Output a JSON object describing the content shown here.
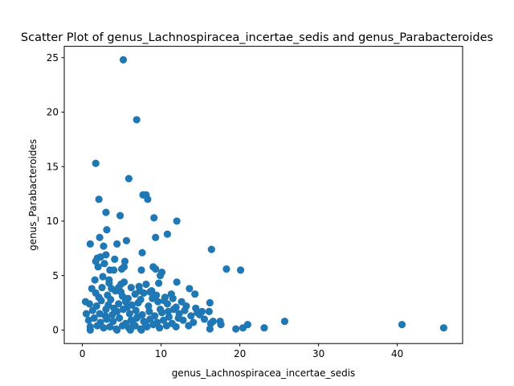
{
  "chart_data": {
    "type": "scatter",
    "title": "Scatter Plot of genus_Lachnospiracea_incertae_sedis and genus_Parabacteroides",
    "xlabel": "genus_Lachnospiracea_incertae_sedis",
    "ylabel": "genus_Parabacteroides",
    "xlim": [
      -2.3,
      48.3
    ],
    "ylim": [
      -1.24,
      26.04
    ],
    "x_ticks": [
      0,
      10,
      20,
      30,
      40
    ],
    "y_ticks": [
      0,
      5,
      10,
      15,
      20,
      25
    ],
    "marker_color": "#1f77b4",
    "grid": false,
    "series": [
      {
        "points": [
          [
            5.2,
            24.8
          ],
          [
            6.9,
            19.3
          ],
          [
            1.7,
            15.3
          ],
          [
            5.9,
            13.9
          ],
          [
            7.7,
            12.4
          ],
          [
            8.1,
            12.4
          ],
          [
            2.1,
            12.0
          ],
          [
            8.3,
            12.0
          ],
          [
            3.0,
            10.8
          ],
          [
            4.8,
            10.5
          ],
          [
            9.1,
            10.3
          ],
          [
            12.0,
            10.0
          ],
          [
            3.1,
            9.2
          ],
          [
            10.8,
            8.8
          ],
          [
            2.2,
            8.5
          ],
          [
            9.3,
            8.5
          ],
          [
            5.6,
            8.2
          ],
          [
            1.0,
            7.9
          ],
          [
            4.4,
            7.9
          ],
          [
            2.7,
            7.7
          ],
          [
            16.4,
            7.4
          ],
          [
            7.6,
            7.1
          ],
          [
            3.0,
            6.9
          ],
          [
            1.9,
            6.6
          ],
          [
            2.3,
            6.7
          ],
          [
            1.7,
            6.3
          ],
          [
            2.8,
            6.1
          ],
          [
            4.1,
            6.5
          ],
          [
            5.4,
            6.3
          ],
          [
            9.0,
            5.8
          ],
          [
            9.3,
            5.6
          ],
          [
            3.5,
            5.5
          ],
          [
            4.0,
            5.5
          ],
          [
            5.0,
            5.6
          ],
          [
            7.5,
            5.5
          ],
          [
            10.1,
            5.3
          ],
          [
            18.3,
            5.6
          ],
          [
            20.1,
            5.5
          ],
          [
            2.0,
            5.8
          ],
          [
            2.6,
            4.9
          ],
          [
            5.3,
            5.8
          ],
          [
            9.9,
            5.0
          ],
          [
            1.6,
            4.6
          ],
          [
            3.4,
            4.6
          ],
          [
            5.3,
            4.4
          ],
          [
            8.1,
            4.2
          ],
          [
            9.7,
            4.3
          ],
          [
            12.0,
            4.4
          ],
          [
            13.6,
            3.8
          ],
          [
            1.2,
            3.8
          ],
          [
            2.5,
            3.9
          ],
          [
            3.7,
            3.8
          ],
          [
            4.6,
            3.9
          ],
          [
            6.2,
            3.9
          ],
          [
            7.2,
            4.0
          ],
          [
            8.6,
            3.5
          ],
          [
            9.4,
            3.2
          ],
          [
            11.5,
            2.9
          ],
          [
            14.3,
            3.3
          ],
          [
            1.7,
            3.4
          ],
          [
            3.2,
            3.2
          ],
          [
            4.2,
            3.6
          ],
          [
            5.1,
            3.1
          ],
          [
            7.8,
            3.4
          ],
          [
            10.5,
            3.0
          ],
          [
            12.6,
            2.6
          ],
          [
            16.2,
            2.5
          ],
          [
            0.4,
            2.6
          ],
          [
            0.9,
            2.4
          ],
          [
            1.8,
            2.2
          ],
          [
            2.4,
            2.7
          ],
          [
            3.3,
            2.3
          ],
          [
            4.6,
            2.4
          ],
          [
            5.5,
            2.6
          ],
          [
            6.3,
            2.3
          ],
          [
            7.1,
            2.5
          ],
          [
            8.4,
            2.2
          ],
          [
            9.6,
            2.6
          ],
          [
            10.8,
            2.4
          ],
          [
            11.9,
            2.1
          ],
          [
            13.2,
            2.2
          ],
          [
            14.4,
            2.0
          ],
          [
            15.2,
            1.7
          ],
          [
            16.1,
            1.7
          ],
          [
            0.5,
            1.5
          ],
          [
            1.3,
            1.8
          ],
          [
            2.2,
            1.5
          ],
          [
            3.0,
            1.9
          ],
          [
            3.8,
            1.4
          ],
          [
            4.4,
            1.7
          ],
          [
            5.2,
            1.9
          ],
          [
            6.0,
            1.5
          ],
          [
            6.8,
            1.8
          ],
          [
            7.6,
            1.4
          ],
          [
            8.5,
            1.7
          ],
          [
            9.2,
            1.3
          ],
          [
            10.1,
            1.6
          ],
          [
            11.0,
            1.2
          ],
          [
            12.3,
            1.5
          ],
          [
            13.8,
            1.3
          ],
          [
            14.6,
            1.6
          ],
          [
            0.8,
            0.9
          ],
          [
            1.5,
            1.1
          ],
          [
            2.3,
            0.7
          ],
          [
            3.1,
            1.0
          ],
          [
            3.9,
            0.8
          ],
          [
            4.7,
            1.1
          ],
          [
            5.5,
            0.6
          ],
          [
            6.2,
            0.9
          ],
          [
            7.0,
            1.2
          ],
          [
            7.8,
            0.8
          ],
          [
            8.6,
            1.0
          ],
          [
            9.5,
            0.7
          ],
          [
            10.3,
            0.9
          ],
          [
            11.4,
            0.6
          ],
          [
            12.8,
            0.9
          ],
          [
            14.1,
            0.7
          ],
          [
            16.3,
            0.6
          ],
          [
            17.6,
            0.5
          ],
          [
            19.5,
            0.1
          ],
          [
            21.0,
            0.5
          ],
          [
            23.1,
            0.2
          ],
          [
            25.7,
            0.8
          ],
          [
            40.6,
            0.5
          ],
          [
            45.9,
            0.2
          ],
          [
            16.6,
            0.8
          ],
          [
            17.5,
            0.8
          ],
          [
            20.4,
            0.2
          ],
          [
            1.0,
            0.3
          ],
          [
            1.9,
            0.4
          ],
          [
            2.7,
            0.2
          ],
          [
            3.5,
            0.3
          ],
          [
            4.3,
            0.1
          ],
          [
            5.1,
            0.4
          ],
          [
            5.9,
            0.2
          ],
          [
            6.7,
            0.4
          ],
          [
            7.4,
            0.1
          ],
          [
            8.2,
            0.3
          ],
          [
            9.0,
            0.5
          ],
          [
            9.8,
            0.2
          ],
          [
            10.7,
            0.4
          ],
          [
            11.9,
            0.3
          ],
          [
            1.0,
            0.0
          ],
          [
            4.4,
            0.0
          ],
          [
            6.1,
            0.0
          ],
          [
            7.5,
            0.0
          ],
          [
            16.2,
            0.1
          ],
          [
            3.4,
            4.3
          ],
          [
            4.9,
            4.2
          ],
          [
            6.7,
            3.3
          ],
          [
            8.9,
            2.9
          ],
          [
            10.4,
            2.7
          ],
          [
            2.1,
            3.0
          ],
          [
            3.6,
            2.8
          ],
          [
            5.8,
            2.9
          ],
          [
            7.4,
            2.8
          ],
          [
            9.9,
            1.9
          ],
          [
            11.6,
            1.9
          ],
          [
            13.0,
            1.8
          ],
          [
            14.9,
            1.4
          ],
          [
            6.5,
            0.5
          ],
          [
            8.0,
            0.6
          ],
          [
            4.0,
            2.0
          ],
          [
            5.7,
            2.1
          ],
          [
            6.9,
            1.1
          ],
          [
            2.9,
            1.3
          ],
          [
            12.2,
            1.1
          ],
          [
            13.5,
            0.4
          ],
          [
            15.5,
            1.0
          ],
          [
            10.9,
            1.7
          ],
          [
            11.3,
            3.3
          ],
          [
            8.8,
            3.6
          ],
          [
            7.3,
            3.6
          ],
          [
            4.9,
            3.5
          ]
        ]
      }
    ]
  }
}
